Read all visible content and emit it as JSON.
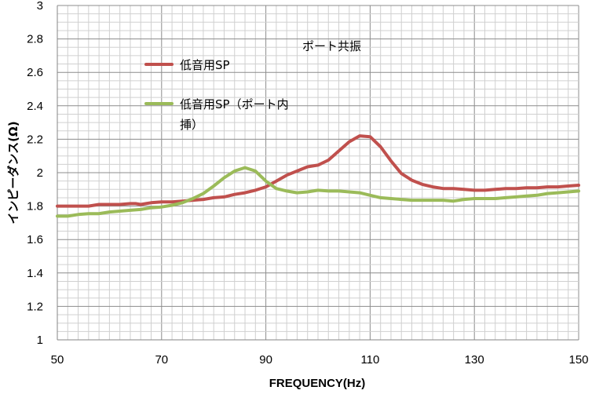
{
  "chart_data": {
    "type": "line",
    "title": "",
    "annotation": "ポート共振",
    "xlabel": "FREQUENCY(Hz)",
    "ylabel": "インピーダンス(Ω)",
    "xlim": [
      50,
      150
    ],
    "ylim": [
      1,
      3
    ],
    "xticks": [
      50,
      70,
      90,
      110,
      130,
      150
    ],
    "yticks": [
      1,
      1.2,
      1.4,
      1.6,
      1.8,
      2,
      2.2,
      2.4,
      2.6,
      2.8,
      3
    ],
    "grid": true,
    "legend_position": "upper-left",
    "series": [
      {
        "name": "低音用SP",
        "color": "#c0504d",
        "x": [
          50,
          52,
          54,
          56,
          58,
          60,
          62,
          64,
          65,
          66,
          67,
          68,
          70,
          72,
          74,
          76,
          78,
          80,
          82,
          84,
          86,
          88,
          90,
          92,
          94,
          96,
          98,
          100,
          102,
          104,
          106,
          108,
          110,
          112,
          114,
          116,
          118,
          120,
          122,
          124,
          126,
          128,
          130,
          132,
          134,
          136,
          138,
          140,
          142,
          144,
          146,
          148,
          150
        ],
        "y": [
          1.8,
          1.8,
          1.8,
          1.8,
          1.81,
          1.81,
          1.81,
          1.815,
          1.815,
          1.81,
          1.815,
          1.82,
          1.825,
          1.825,
          1.83,
          1.835,
          1.84,
          1.85,
          1.855,
          1.87,
          1.88,
          1.895,
          1.915,
          1.95,
          1.985,
          2.01,
          2.035,
          2.045,
          2.075,
          2.13,
          2.185,
          2.22,
          2.215,
          2.155,
          2.07,
          1.995,
          1.955,
          1.93,
          1.915,
          1.905,
          1.905,
          1.9,
          1.895,
          1.895,
          1.9,
          1.905,
          1.905,
          1.91,
          1.91,
          1.915,
          1.915,
          1.92,
          1.925
        ]
      },
      {
        "name": "低音用SP（ポート内挿）",
        "color": "#9bbb59",
        "x": [
          50,
          52,
          54,
          56,
          58,
          60,
          62,
          64,
          66,
          68,
          70,
          72,
          74,
          76,
          78,
          80,
          82,
          84,
          86,
          88,
          90,
          92,
          94,
          96,
          98,
          100,
          102,
          104,
          106,
          108,
          110,
          112,
          114,
          116,
          118,
          120,
          122,
          124,
          126,
          128,
          130,
          132,
          134,
          136,
          138,
          140,
          142,
          144,
          146,
          148,
          150
        ],
        "y": [
          1.74,
          1.74,
          1.75,
          1.755,
          1.755,
          1.765,
          1.77,
          1.775,
          1.78,
          1.79,
          1.795,
          1.805,
          1.82,
          1.845,
          1.875,
          1.92,
          1.97,
          2.01,
          2.03,
          2.01,
          1.95,
          1.905,
          1.89,
          1.88,
          1.885,
          1.895,
          1.89,
          1.89,
          1.885,
          1.88,
          1.865,
          1.85,
          1.845,
          1.84,
          1.835,
          1.835,
          1.835,
          1.835,
          1.83,
          1.84,
          1.845,
          1.845,
          1.845,
          1.85,
          1.855,
          1.86,
          1.865,
          1.875,
          1.88,
          1.885,
          1.89
        ]
      }
    ],
    "legend": {
      "entries": [
        {
          "lines": [
            "低音用SP"
          ],
          "color": "#c0504d"
        },
        {
          "lines": [
            "低音用SP（ポート内",
            "挿）"
          ],
          "color": "#9bbb59"
        }
      ]
    }
  }
}
